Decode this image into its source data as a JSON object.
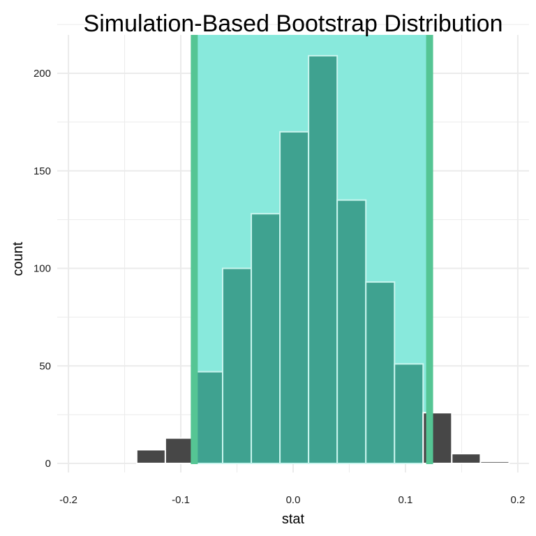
{
  "chart_data": {
    "type": "bar",
    "title": "Simulation-Based Bootstrap Distribution",
    "xlabel": "stat",
    "ylabel": "count",
    "xlim": [
      -0.21,
      0.21
    ],
    "ylim": [
      0,
      220
    ],
    "grid": true,
    "x_ticks": [
      -0.2,
      -0.1,
      0.0,
      0.1,
      0.2
    ],
    "x_tick_labels": [
      "-0.2",
      "-0.1",
      "0.0",
      "0.1",
      "0.2"
    ],
    "y_ticks": [
      0,
      50,
      100,
      150,
      200
    ],
    "y_tick_labels": [
      "0",
      "50",
      "100",
      "150",
      "200"
    ],
    "bin_width": 0.0255,
    "bins": [
      {
        "x": -0.1775,
        "count": 0
      },
      {
        "x": -0.152,
        "count": 0
      },
      {
        "x": -0.1265,
        "count": 7
      },
      {
        "x": -0.101,
        "count": 13
      },
      {
        "x": -0.0755,
        "count": 47
      },
      {
        "x": -0.05,
        "count": 100
      },
      {
        "x": -0.0245,
        "count": 128
      },
      {
        "x": 0.001,
        "count": 170
      },
      {
        "x": 0.0265,
        "count": 209
      },
      {
        "x": 0.052,
        "count": 135
      },
      {
        "x": 0.0775,
        "count": 93
      },
      {
        "x": 0.103,
        "count": 51
      },
      {
        "x": 0.1285,
        "count": 26
      },
      {
        "x": 0.154,
        "count": 5
      },
      {
        "x": 0.1795,
        "count": 1
      }
    ],
    "shaded_interval": {
      "lower": -0.088,
      "upper": 0.1215
    },
    "colors": {
      "bar_outside": "#474747",
      "bar_inside": "#3fa290",
      "bar_edge": "#ffffff",
      "interval_fill": "#88e9dc",
      "interval_edge": "#55c594",
      "grid": "#ebebeb"
    }
  }
}
